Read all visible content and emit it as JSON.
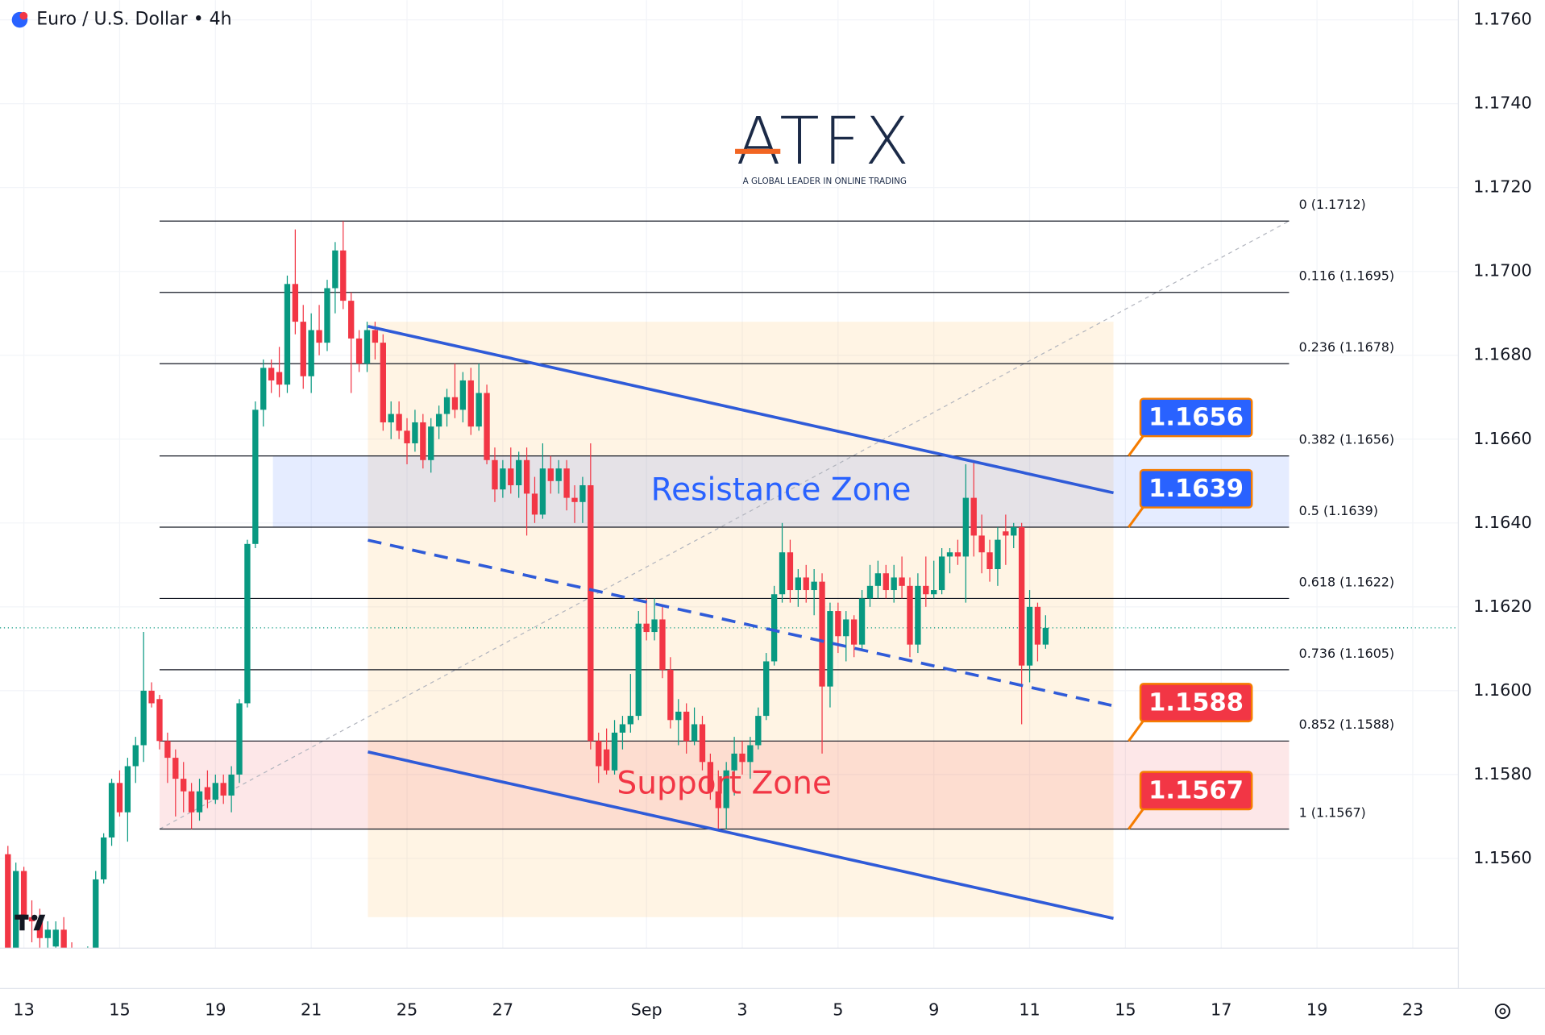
{
  "chart_data": {
    "type": "candlestick",
    "title": "Euro / U.S. Dollar • 4h",
    "up_color": "#089981",
    "down_color": "#f23645",
    "grid": true,
    "xlim": [
      -0.99,
      181.7
    ],
    "ylim": [
      1.15386,
      1.17647
    ],
    "xticks": [
      {
        "value": 2,
        "label": "13"
      },
      {
        "value": 14,
        "label": "15"
      },
      {
        "value": 26,
        "label": "19"
      },
      {
        "value": 38,
        "label": "21"
      },
      {
        "value": 50,
        "label": "25"
      },
      {
        "value": 62,
        "label": "27"
      },
      {
        "value": 80,
        "label": "Sep"
      },
      {
        "value": 92,
        "label": "3"
      },
      {
        "value": 104,
        "label": "5"
      },
      {
        "value": 116,
        "label": "9"
      },
      {
        "value": 128,
        "label": "11"
      },
      {
        "value": 140,
        "label": "15"
      },
      {
        "value": 152,
        "label": "17"
      },
      {
        "value": 164,
        "label": "19"
      },
      {
        "value": 176,
        "label": "23"
      }
    ],
    "yticks": [
      {
        "value": 1.176,
        "label": "1.1760"
      },
      {
        "value": 1.174,
        "label": "1.1740"
      },
      {
        "value": 1.172,
        "label": "1.1720"
      },
      {
        "value": 1.17,
        "label": "1.1700"
      },
      {
        "value": 1.168,
        "label": "1.1680"
      },
      {
        "value": 1.166,
        "label": "1.1660"
      },
      {
        "value": 1.164,
        "label": "1.1640"
      },
      {
        "value": 1.162,
        "label": "1.1620"
      },
      {
        "value": 1.16,
        "label": "1.1600"
      },
      {
        "value": 1.158,
        "label": "1.1580"
      },
      {
        "value": 1.156,
        "label": "1.1560"
      }
    ],
    "ohlc": [
      [
        1.1561,
        1.1563,
        1.1535,
        1.1538
      ],
      [
        1.1538,
        1.1559,
        1.1536,
        1.1557
      ],
      [
        1.1557,
        1.1558,
        1.1544,
        1.1546
      ],
      [
        1.1546,
        1.155,
        1.154,
        1.1545
      ],
      [
        1.1545,
        1.1548,
        1.1538,
        1.1541
      ],
      [
        1.1541,
        1.1545,
        1.1536,
        1.1543
      ],
      [
        1.1539,
        1.1545,
        1.1536,
        1.1543
      ],
      [
        1.1543,
        1.1546,
        1.1535,
        1.1537
      ],
      [
        1.1537,
        1.154,
        1.1532,
        1.1535
      ],
      [
        1.1535,
        1.1538,
        1.153,
        1.1534
      ],
      [
        1.1534,
        1.1539,
        1.1531,
        1.1537
      ],
      [
        1.1538,
        1.1557,
        1.1537,
        1.1555
      ],
      [
        1.1555,
        1.1566,
        1.1554,
        1.1565
      ],
      [
        1.1565,
        1.1579,
        1.1563,
        1.1578
      ],
      [
        1.1578,
        1.1581,
        1.157,
        1.1571
      ],
      [
        1.1571,
        1.1584,
        1.1564,
        1.1582
      ],
      [
        1.1582,
        1.1589,
        1.1578,
        1.1587
      ],
      [
        1.1587,
        1.1614,
        1.1583,
        1.16
      ],
      [
        1.16,
        1.1602,
        1.1596,
        1.1597
      ],
      [
        1.1598,
        1.1599,
        1.1586,
        1.1588
      ],
      [
        1.1588,
        1.159,
        1.1578,
        1.1584
      ],
      [
        1.1584,
        1.1586,
        1.157,
        1.1579
      ],
      [
        1.1579,
        1.1583,
        1.1571,
        1.1576
      ],
      [
        1.1576,
        1.1578,
        1.1567,
        1.1571
      ],
      [
        1.1571,
        1.1579,
        1.1569,
        1.1576
      ],
      [
        1.1577,
        1.1581,
        1.1572,
        1.1574
      ],
      [
        1.1574,
        1.158,
        1.1573,
        1.1578
      ],
      [
        1.1578,
        1.158,
        1.1573,
        1.1575
      ],
      [
        1.1575,
        1.1582,
        1.1571,
        1.158
      ],
      [
        1.158,
        1.1598,
        1.1578,
        1.1597
      ],
      [
        1.1597,
        1.1636,
        1.1596,
        1.1635
      ],
      [
        1.1635,
        1.1669,
        1.1634,
        1.1667
      ],
      [
        1.1667,
        1.1679,
        1.1663,
        1.1677
      ],
      [
        1.1677,
        1.1679,
        1.1671,
        1.1674
      ],
      [
        1.1676,
        1.1682,
        1.167,
        1.1673
      ],
      [
        1.1673,
        1.1699,
        1.1671,
        1.1697
      ],
      [
        1.1697,
        1.171,
        1.1685,
        1.1688
      ],
      [
        1.1688,
        1.1692,
        1.1672,
        1.1675
      ],
      [
        1.1675,
        1.169,
        1.1671,
        1.1686
      ],
      [
        1.1686,
        1.1692,
        1.168,
        1.1683
      ],
      [
        1.1683,
        1.1698,
        1.1681,
        1.1696
      ],
      [
        1.1696,
        1.1707,
        1.169,
        1.1705
      ],
      [
        1.1705,
        1.1712,
        1.1691,
        1.1693
      ],
      [
        1.1693,
        1.1695,
        1.1671,
        1.1684
      ],
      [
        1.1684,
        1.1686,
        1.1676,
        1.1678
      ],
      [
        1.1678,
        1.1688,
        1.1676,
        1.1686
      ],
      [
        1.1686,
        1.1688,
        1.1679,
        1.1683
      ],
      [
        1.1683,
        1.1685,
        1.1662,
        1.1664
      ],
      [
        1.1664,
        1.1669,
        1.166,
        1.1666
      ],
      [
        1.1666,
        1.1669,
        1.166,
        1.1662
      ],
      [
        1.1662,
        1.1665,
        1.1654,
        1.1659
      ],
      [
        1.1659,
        1.1667,
        1.1657,
        1.1664
      ],
      [
        1.1664,
        1.1666,
        1.1653,
        1.1655
      ],
      [
        1.1655,
        1.1665,
        1.1652,
        1.1663
      ],
      [
        1.1663,
        1.1668,
        1.166,
        1.1666
      ],
      [
        1.1666,
        1.1672,
        1.1663,
        1.167
      ],
      [
        1.167,
        1.1678,
        1.1665,
        1.1667
      ],
      [
        1.1667,
        1.1676,
        1.1664,
        1.1674
      ],
      [
        1.1674,
        1.1677,
        1.1661,
        1.1663
      ],
      [
        1.1663,
        1.1678,
        1.1662,
        1.1671
      ],
      [
        1.1671,
        1.1673,
        1.1654,
        1.1655
      ],
      [
        1.1655,
        1.1658,
        1.1645,
        1.1648
      ],
      [
        1.1648,
        1.1655,
        1.1646,
        1.1653
      ],
      [
        1.1653,
        1.1658,
        1.1647,
        1.1649
      ],
      [
        1.1649,
        1.1657,
        1.1646,
        1.1655
      ],
      [
        1.1655,
        1.1658,
        1.1637,
        1.1647
      ],
      [
        1.1647,
        1.1651,
        1.164,
        1.1642
      ],
      [
        1.1642,
        1.1659,
        1.1641,
        1.1653
      ],
      [
        1.1653,
        1.1656,
        1.1647,
        1.165
      ],
      [
        1.165,
        1.1655,
        1.1647,
        1.1653
      ],
      [
        1.1653,
        1.1655,
        1.1643,
        1.1646
      ],
      [
        1.1646,
        1.1649,
        1.164,
        1.1645
      ],
      [
        1.1645,
        1.1651,
        1.164,
        1.1649
      ],
      [
        1.1649,
        1.1659,
        1.1586,
        1.1588
      ],
      [
        1.1588,
        1.159,
        1.1578,
        1.1582
      ],
      [
        1.1586,
        1.1591,
        1.158,
        1.1581
      ],
      [
        1.1581,
        1.1593,
        1.158,
        1.159
      ],
      [
        1.159,
        1.1594,
        1.1586,
        1.1592
      ],
      [
        1.1592,
        1.1604,
        1.159,
        1.1594
      ],
      [
        1.1594,
        1.1619,
        1.1593,
        1.1616
      ],
      [
        1.1616,
        1.1622,
        1.1612,
        1.1614
      ],
      [
        1.1614,
        1.1622,
        1.1612,
        1.1617
      ],
      [
        1.1617,
        1.162,
        1.1603,
        1.1605
      ],
      [
        1.1605,
        1.1608,
        1.1591,
        1.1593
      ],
      [
        1.1593,
        1.1598,
        1.1587,
        1.1595
      ],
      [
        1.1595,
        1.1597,
        1.1585,
        1.1588
      ],
      [
        1.1588,
        1.1596,
        1.1587,
        1.1592
      ],
      [
        1.1592,
        1.1594,
        1.1581,
        1.1583
      ],
      [
        1.1583,
        1.1585,
        1.1574,
        1.1576
      ],
      [
        1.1576,
        1.1581,
        1.1567,
        1.1572
      ],
      [
        1.1572,
        1.1583,
        1.1567,
        1.1581
      ],
      [
        1.1581,
        1.1589,
        1.1575,
        1.1585
      ],
      [
        1.1585,
        1.1588,
        1.158,
        1.1583
      ],
      [
        1.1583,
        1.1589,
        1.1579,
        1.1587
      ],
      [
        1.1587,
        1.1596,
        1.1586,
        1.1594
      ],
      [
        1.1594,
        1.1609,
        1.1593,
        1.1607
      ],
      [
        1.1607,
        1.1625,
        1.1606,
        1.1623
      ],
      [
        1.1623,
        1.164,
        1.1621,
        1.1633
      ],
      [
        1.1633,
        1.1636,
        1.1621,
        1.1624
      ],
      [
        1.1624,
        1.1629,
        1.162,
        1.1627
      ],
      [
        1.1627,
        1.163,
        1.1621,
        1.1624
      ],
      [
        1.1624,
        1.1629,
        1.1618,
        1.1626
      ],
      [
        1.1626,
        1.1628,
        1.1585,
        1.1601
      ],
      [
        1.1601,
        1.1621,
        1.1596,
        1.1619
      ],
      [
        1.1619,
        1.1621,
        1.1609,
        1.1613
      ],
      [
        1.1613,
        1.1619,
        1.1607,
        1.1617
      ],
      [
        1.1617,
        1.1618,
        1.1608,
        1.1611
      ],
      [
        1.1611,
        1.1624,
        1.161,
        1.1622
      ],
      [
        1.1622,
        1.163,
        1.162,
        1.1625
      ],
      [
        1.1625,
        1.1631,
        1.1622,
        1.1628
      ],
      [
        1.1628,
        1.163,
        1.1622,
        1.1624
      ],
      [
        1.1624,
        1.163,
        1.1621,
        1.1627
      ],
      [
        1.1627,
        1.1632,
        1.1622,
        1.1625
      ],
      [
        1.1625,
        1.1627,
        1.1608,
        1.1611
      ],
      [
        1.1611,
        1.1628,
        1.1609,
        1.1625
      ],
      [
        1.1625,
        1.1632,
        1.162,
        1.1623
      ],
      [
        1.1623,
        1.1631,
        1.1622,
        1.1624
      ],
      [
        1.1624,
        1.1634,
        1.1623,
        1.1632
      ],
      [
        1.1632,
        1.1634,
        1.1628,
        1.1633
      ],
      [
        1.1633,
        1.1636,
        1.163,
        1.1632
      ],
      [
        1.1632,
        1.1654,
        1.1621,
        1.1646
      ],
      [
        1.1646,
        1.1655,
        1.1632,
        1.1637
      ],
      [
        1.1637,
        1.1642,
        1.1628,
        1.1633
      ],
      [
        1.1633,
        1.1636,
        1.1626,
        1.1629
      ],
      [
        1.1629,
        1.1639,
        1.1625,
        1.1636
      ],
      [
        1.1638,
        1.1642,
        1.163,
        1.1637
      ],
      [
        1.1637,
        1.164,
        1.1634,
        1.1639
      ],
      [
        1.1639,
        1.164,
        1.1592,
        1.1606
      ],
      [
        1.1606,
        1.1624,
        1.1602,
        1.162
      ],
      [
        1.162,
        1.1621,
        1.1607,
        1.1611
      ],
      [
        1.1611,
        1.1618,
        1.161,
        1.1615
      ]
    ],
    "fib": {
      "x": [
        19,
        160.5
      ],
      "color": "#131722",
      "levels": [
        {
          "value": 1.1712,
          "label": "0 (1.1712)"
        },
        {
          "value": 1.1695,
          "label": "0.116 (1.1695)"
        },
        {
          "value": 1.1678,
          "label": "0.236 (1.1678)"
        },
        {
          "value": 1.1656,
          "label": "0.382 (1.1656)"
        },
        {
          "value": 1.1639,
          "label": "0.5 (1.1639)"
        },
        {
          "value": 1.1622,
          "label": "0.618 (1.1622)"
        },
        {
          "value": 1.1605,
          "label": "0.736 (1.1605)"
        },
        {
          "value": 1.1588,
          "label": "0.852 (1.1588)"
        },
        {
          "value": 1.1567,
          "label": "1 (1.1567)"
        }
      ]
    },
    "highlight": {
      "x": [
        45.1,
        138.5
      ],
      "range": [
        1.1546,
        1.1688
      ],
      "color": "#ffb74d"
    },
    "zones": [
      {
        "label": "Resistance Zone",
        "range": [
          1.1639,
          1.1656
        ],
        "x": [
          33.2,
          160.5
        ],
        "color": "#2962ff"
      },
      {
        "label": "Support Zone",
        "range": [
          1.1567,
          1.1588
        ],
        "x": [
          19,
          160.5
        ],
        "color": "#f23645"
      }
    ],
    "trendlines": {
      "color": "#2f5bd8",
      "lines": [
        {
          "x": [
            45.1,
            138.5
          ],
          "y": [
            1.16869,
            1.16472
          ],
          "dashed": false
        },
        {
          "x": [
            45.1,
            138.5
          ],
          "y": [
            1.15854,
            1.15457
          ],
          "dashed": false
        },
        {
          "x": [
            45.1,
            138.5
          ],
          "y": [
            1.16359,
            1.15964
          ],
          "dashed": true
        }
      ]
    },
    "callouts": {
      "x": 140.4,
      "border": "#f57c00",
      "items": [
        {
          "value": 1.1656,
          "color": "#2962ff"
        },
        {
          "value": 1.1639,
          "color": "#2962ff"
        },
        {
          "value": 1.1588,
          "color": "#f23645"
        },
        {
          "value": 1.1567,
          "color": "#f23645"
        }
      ]
    }
  },
  "logo": {
    "text": "ATFX",
    "tagline": "A GLOBAL LEADER IN ONLINE TRADING"
  }
}
